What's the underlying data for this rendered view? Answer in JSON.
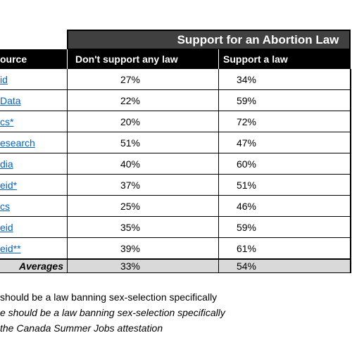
{
  "table": {
    "group_header": "Support for an Abortion Law",
    "columns": [
      "ource",
      "Don't support any law",
      "Support a law"
    ],
    "rows": [
      [
        "id",
        "27%",
        "34%"
      ],
      [
        "Data",
        "22%",
        "59%"
      ],
      [
        "cs*",
        "20%",
        "72%"
      ],
      [
        "esearch",
        "51%",
        "47%"
      ],
      [
        "dia",
        "40%",
        "60%"
      ],
      [
        "eid*",
        "37%",
        "51%"
      ],
      [
        "cs",
        "25%",
        "46%"
      ],
      [
        "eid",
        "35%",
        "59%"
      ],
      [
        "eid**",
        "39%",
        "61%"
      ]
    ],
    "averages": [
      "Averages",
      "33%",
      "54%"
    ]
  },
  "footnotes": [
    "should be a law banning sex-selection specifically",
    "e should be a law banning sex-selection specifically",
    "the Canada Summer Jobs attestation"
  ]
}
